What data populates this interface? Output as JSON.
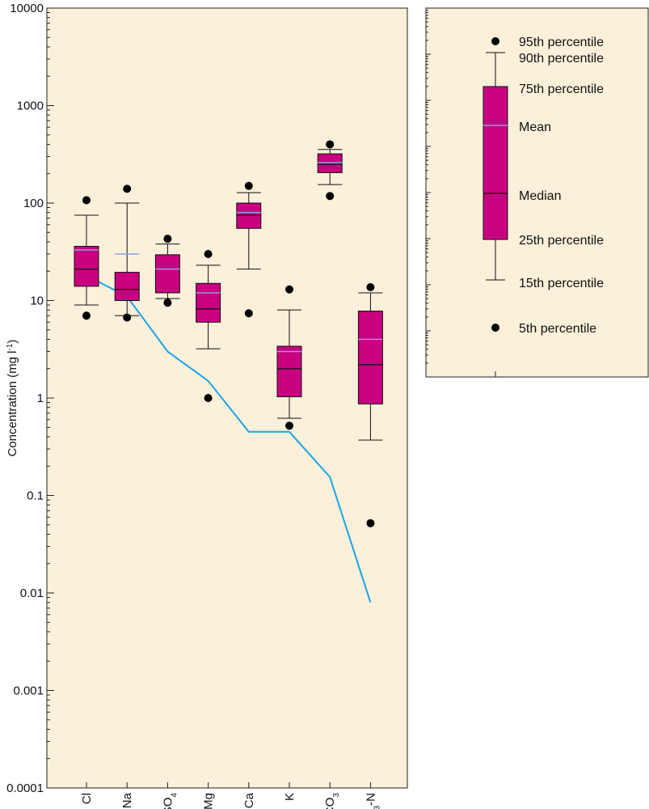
{
  "chart_data": {
    "type": "box",
    "ylabel_main": "Concentration (mg l",
    "ylabel_sup": "-1",
    "ylabel_end": ")",
    "yscale": "log",
    "ylim": [
      0.0001,
      10000
    ],
    "yticks": [
      "10000",
      "1000",
      "100",
      "10",
      "1",
      "0.1",
      "0.01",
      "0.001",
      "0.0001"
    ],
    "ytick_values": [
      10000,
      1000,
      100,
      10,
      1,
      0.1,
      0.01,
      0.001,
      0.0001
    ],
    "categories": [
      {
        "base": "Cl",
        "sub": "",
        "tail": ""
      },
      {
        "base": "Na",
        "sub": "",
        "tail": ""
      },
      {
        "base": "SO",
        "sub": "4",
        "tail": ""
      },
      {
        "base": "Mg",
        "sub": "",
        "tail": ""
      },
      {
        "base": "Ca",
        "sub": "",
        "tail": ""
      },
      {
        "base": "K",
        "sub": "",
        "tail": ""
      },
      {
        "base": "HCO",
        "sub": "3",
        "tail": ""
      },
      {
        "base": "NO",
        "sub": "3",
        "tail": "-N"
      }
    ],
    "boxes": [
      {
        "p5": 7,
        "p15": 9,
        "p25": 14,
        "median": 21,
        "mean": 33,
        "p75": 36,
        "p90": 75,
        "p95": 107
      },
      {
        "p5": 6.7,
        "p15": 7,
        "p25": 10,
        "median": 13,
        "mean": 30,
        "p75": 19.5,
        "p90": 100,
        "p95": 140
      },
      {
        "p5": 9.5,
        "p15": 10.5,
        "p25": 12,
        "median": 21,
        "mean": 21,
        "p75": 29.5,
        "p90": 38,
        "p95": 43
      },
      {
        "p5": 1,
        "p15": 3.2,
        "p25": 6,
        "median": 8.2,
        "mean": 12,
        "p75": 15,
        "p90": 23,
        "p95": 30
      },
      {
        "p5": 7.4,
        "p15": 21,
        "p25": 55,
        "median": 75,
        "mean": 80,
        "p75": 100,
        "p90": 128,
        "p95": 150
      },
      {
        "p5": 0.52,
        "p15": 0.62,
        "p25": 1.03,
        "median": 2,
        "mean": 3,
        "p75": 3.4,
        "p90": 8,
        "p95": 13
      },
      {
        "p5": 118,
        "p15": 155,
        "p25": 205,
        "median": 250,
        "mean": 260,
        "p75": 320,
        "p90": 355,
        "p95": 400
      },
      {
        "p5": 0.052,
        "p15": 0.37,
        "p25": 0.87,
        "median": 2.2,
        "mean": 4,
        "p75": 7.8,
        "p90": 12,
        "p95": 13.7
      }
    ],
    "line": [
      18,
      11,
      3,
      1.5,
      0.45,
      0.45,
      0.155,
      0.008
    ],
    "colors": {
      "background": "#fbf0da",
      "box_fill": "#c8007f",
      "mean_line": "#8aa2e6",
      "reference_line": "#1aa4e8",
      "point": "#000000"
    },
    "legend": {
      "p95": "95th percentile",
      "p90": "90th percentile",
      "p75": "75th percentile",
      "mean": "Mean",
      "median": "Median",
      "p25": "25th percentile",
      "p15": "15th percentile",
      "p5": "5th percentile"
    }
  }
}
